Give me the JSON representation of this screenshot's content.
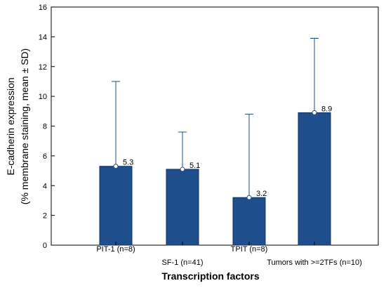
{
  "chart_data": {
    "type": "bar",
    "categories": [
      "PIT-1 (n=8)",
      "SF-1 (n=41)",
      "TPIT (n=8)",
      "Tumors with >=2TFs (n=10)"
    ],
    "values": [
      5.3,
      5.1,
      3.2,
      8.9
    ],
    "error_upper": [
      11.0,
      7.6,
      8.8,
      13.9
    ],
    "data_labels": [
      "5.3",
      "5.1",
      "3.2",
      "8.9"
    ],
    "xlabel": "Transcription factors",
    "ylabel_line1": "E-cadherin expression",
    "ylabel_line2": "(% membrane staining, mean ± SD)",
    "ylim": [
      0,
      16
    ],
    "yticks": [
      0,
      2,
      4,
      6,
      8,
      10,
      12,
      14,
      16
    ],
    "grid": false,
    "bar_color": "#1f4e8c"
  }
}
